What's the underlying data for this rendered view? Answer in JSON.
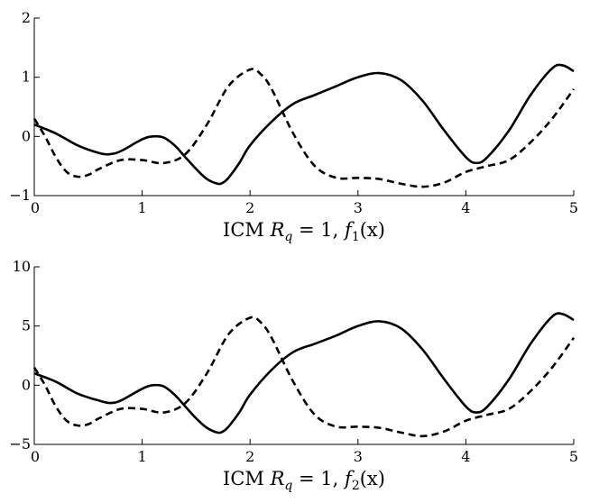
{
  "chart_data": [
    {
      "type": "line",
      "title": "",
      "xlabel": "ICM R_q = 1, f_1(x)",
      "xlabel_parts": {
        "prefix": "ICM ",
        "var": "R",
        "sub": "q",
        "eq": " = 1, ",
        "fn": "f",
        "fnsub": "1",
        "arg": "(x)"
      },
      "ylabel": "",
      "xlim": [
        0,
        5
      ],
      "ylim": [
        -1,
        2
      ],
      "xticks": [
        0,
        1,
        2,
        3,
        4,
        5
      ],
      "yticks": [
        -1,
        0,
        1,
        2
      ],
      "grid": false,
      "series": [
        {
          "style": "solid",
          "x": [
            0,
            0.2,
            0.4,
            0.6,
            0.7,
            0.8,
            1.0,
            1.1,
            1.2,
            1.3,
            1.4,
            1.5,
            1.6,
            1.7,
            1.75,
            1.8,
            1.9,
            2.0,
            2.2,
            2.4,
            2.6,
            2.8,
            3.0,
            3.2,
            3.4,
            3.6,
            3.8,
            4.0,
            4.1,
            4.2,
            4.4,
            4.6,
            4.8,
            4.9,
            5.0
          ],
          "y": [
            0.2,
            0.05,
            -0.15,
            -0.28,
            -0.3,
            -0.25,
            -0.05,
            0.0,
            -0.02,
            -0.15,
            -0.35,
            -0.55,
            -0.72,
            -0.8,
            -0.78,
            -0.7,
            -0.45,
            -0.15,
            0.25,
            0.55,
            0.7,
            0.85,
            1.0,
            1.07,
            0.95,
            0.6,
            0.1,
            -0.35,
            -0.45,
            -0.35,
            0.1,
            0.7,
            1.15,
            1.2,
            1.1
          ]
        },
        {
          "style": "dashed",
          "x": [
            0,
            0.1,
            0.2,
            0.3,
            0.4,
            0.5,
            0.6,
            0.8,
            1.0,
            1.2,
            1.4,
            1.6,
            1.8,
            2.0,
            2.1,
            2.2,
            2.4,
            2.6,
            2.8,
            3.0,
            3.2,
            3.4,
            3.6,
            3.8,
            4.0,
            4.2,
            4.4,
            4.6,
            4.8,
            5.0
          ],
          "y": [
            0.3,
            0.0,
            -0.35,
            -0.6,
            -0.68,
            -0.65,
            -0.55,
            -0.4,
            -0.4,
            -0.45,
            -0.3,
            0.2,
            0.85,
            1.13,
            1.05,
            0.8,
            0.05,
            -0.5,
            -0.7,
            -0.7,
            -0.72,
            -0.8,
            -0.85,
            -0.78,
            -0.6,
            -0.5,
            -0.4,
            -0.1,
            0.3,
            0.8
          ]
        }
      ]
    },
    {
      "type": "line",
      "title": "",
      "xlabel": "ICM R_q = 1, f_2(x)",
      "xlabel_parts": {
        "prefix": "ICM ",
        "var": "R",
        "sub": "q",
        "eq": " = 1, ",
        "fn": "f",
        "fnsub": "2",
        "arg": "(x)"
      },
      "ylabel": "",
      "xlim": [
        0,
        5
      ],
      "ylim": [
        -5,
        10
      ],
      "xticks": [
        0,
        1,
        2,
        3,
        4,
        5
      ],
      "yticks": [
        -5,
        0,
        5,
        10
      ],
      "grid": false,
      "series": [
        {
          "style": "solid",
          "x": [
            0,
            0.2,
            0.4,
            0.6,
            0.7,
            0.8,
            1.0,
            1.1,
            1.2,
            1.3,
            1.4,
            1.5,
            1.6,
            1.7,
            1.75,
            1.8,
            1.9,
            2.0,
            2.2,
            2.4,
            2.6,
            2.8,
            3.0,
            3.2,
            3.4,
            3.6,
            3.8,
            4.0,
            4.1,
            4.2,
            4.4,
            4.6,
            4.8,
            4.9,
            5.0
          ],
          "y": [
            1.0,
            0.3,
            -0.7,
            -1.3,
            -1.5,
            -1.3,
            -0.3,
            0.0,
            -0.1,
            -0.8,
            -1.8,
            -2.8,
            -3.6,
            -4.0,
            -3.9,
            -3.5,
            -2.3,
            -0.8,
            1.3,
            2.8,
            3.5,
            4.2,
            5.0,
            5.4,
            4.8,
            3.0,
            0.5,
            -1.8,
            -2.3,
            -1.8,
            0.5,
            3.5,
            5.8,
            6.0,
            5.5
          ]
        },
        {
          "style": "dashed",
          "x": [
            0,
            0.1,
            0.2,
            0.3,
            0.4,
            0.5,
            0.6,
            0.8,
            1.0,
            1.2,
            1.4,
            1.6,
            1.8,
            2.0,
            2.1,
            2.2,
            2.4,
            2.6,
            2.8,
            3.0,
            3.2,
            3.4,
            3.6,
            3.8,
            4.0,
            4.2,
            4.4,
            4.6,
            4.8,
            5.0
          ],
          "y": [
            1.5,
            0.0,
            -1.8,
            -3.0,
            -3.4,
            -3.3,
            -2.8,
            -2.0,
            -2.0,
            -2.3,
            -1.5,
            1.0,
            4.3,
            5.7,
            5.3,
            4.0,
            0.3,
            -2.5,
            -3.5,
            -3.5,
            -3.6,
            -4.0,
            -4.3,
            -3.9,
            -3.0,
            -2.5,
            -2.0,
            -0.5,
            1.5,
            4.0
          ]
        }
      ]
    }
  ]
}
